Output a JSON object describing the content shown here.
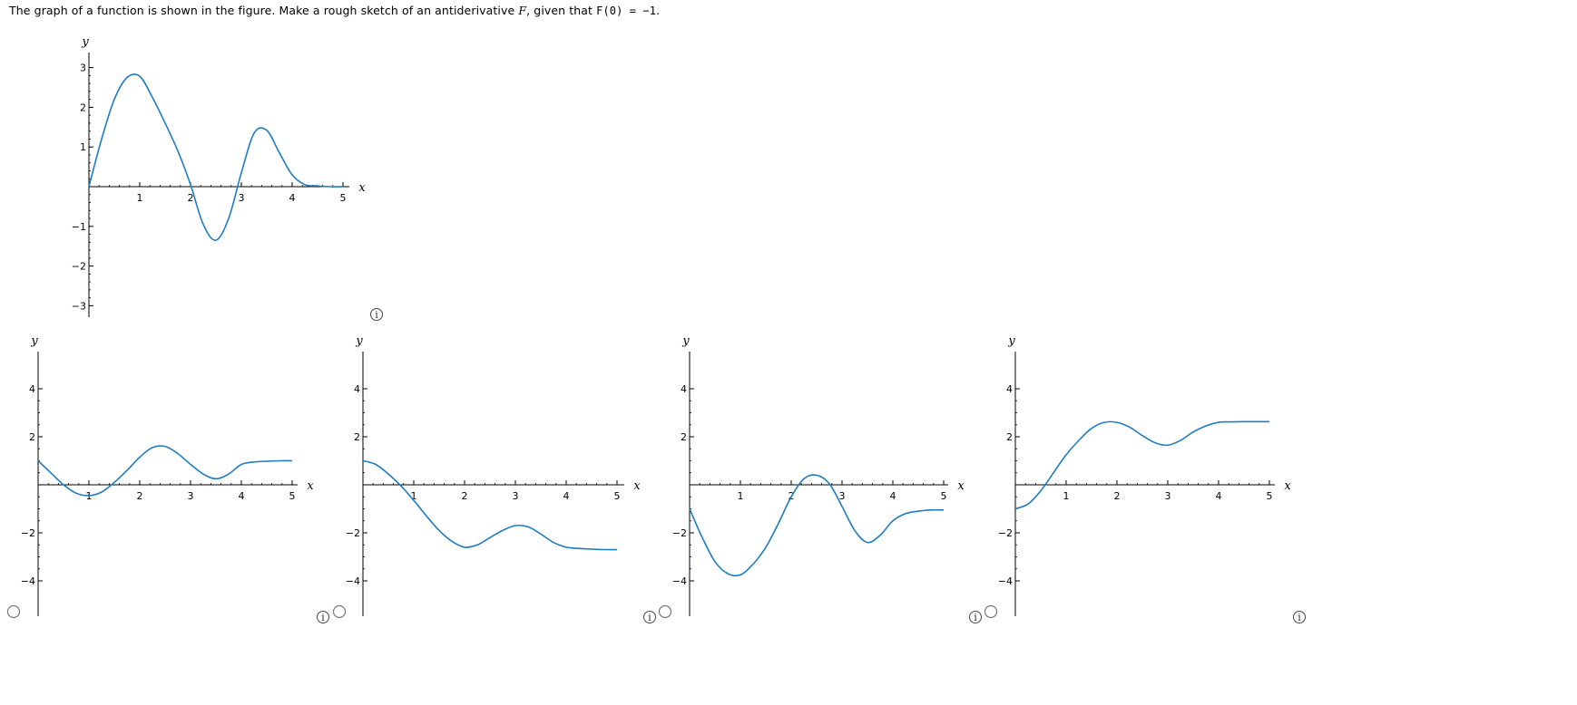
{
  "question": {
    "before_f": "The graph of a function is shown in the figure. Make a rough sketch of an antiderivative ",
    "f_symbol": "F",
    "after_f": ", given that ",
    "condition": "F(0) = −1",
    "period": "."
  },
  "colors": {
    "curve": "#1f7cc0",
    "axis": "#000000"
  },
  "icons": {
    "info": "info-circle-icon",
    "radio": "radio-button"
  },
  "chart_data": [
    {
      "id": "given",
      "type": "line",
      "xlabel": "x",
      "ylabel": "y",
      "xlim": [
        0,
        5
      ],
      "ylim": [
        -3,
        3
      ],
      "xticks": [
        1,
        2,
        3,
        4,
        5
      ],
      "yticks": [
        -3,
        -2,
        -1,
        1,
        2,
        3
      ],
      "series": [
        {
          "x": [
            0,
            0.25,
            0.5,
            0.75,
            1.0,
            1.25,
            1.5,
            1.75,
            2.0,
            2.25,
            2.5,
            2.75,
            3.0,
            3.25,
            3.5,
            3.75,
            4.0,
            4.25,
            4.5,
            4.75,
            5.0
          ],
          "y": [
            0,
            1.2,
            2.2,
            2.75,
            2.78,
            2.25,
            1.6,
            0.9,
            0.05,
            -0.95,
            -1.35,
            -0.8,
            0.35,
            1.35,
            1.42,
            0.85,
            0.3,
            0.05,
            0.02,
            0.0,
            0.0
          ]
        }
      ]
    },
    {
      "id": "choice-a",
      "type": "line",
      "xlabel": "x",
      "ylabel": "y",
      "xlim": [
        0,
        5
      ],
      "ylim": [
        -4,
        4
      ],
      "xticks": [
        1,
        2,
        3,
        4,
        5
      ],
      "yticks": [
        -4,
        -2,
        2,
        4
      ],
      "series": [
        {
          "x": [
            0,
            0.25,
            0.5,
            0.75,
            1.0,
            1.25,
            1.5,
            1.75,
            2.0,
            2.25,
            2.5,
            2.75,
            3.0,
            3.25,
            3.5,
            3.75,
            4.0,
            4.25,
            4.5,
            4.75,
            5.0
          ],
          "y": [
            1.0,
            0.5,
            0.0,
            -0.35,
            -0.45,
            -0.3,
            0.1,
            0.6,
            1.15,
            1.55,
            1.6,
            1.3,
            0.85,
            0.45,
            0.25,
            0.45,
            0.85,
            0.95,
            0.98,
            1.0,
            1.0
          ]
        }
      ]
    },
    {
      "id": "choice-b",
      "type": "line",
      "xlabel": "x",
      "ylabel": "y",
      "xlim": [
        0,
        5
      ],
      "ylim": [
        -4,
        4
      ],
      "xticks": [
        1,
        2,
        3,
        4,
        5
      ],
      "yticks": [
        -4,
        -2,
        2,
        4
      ],
      "series": [
        {
          "x": [
            0,
            0.25,
            0.5,
            0.75,
            1.0,
            1.25,
            1.5,
            1.75,
            2.0,
            2.25,
            2.5,
            2.75,
            3.0,
            3.25,
            3.5,
            3.75,
            4.0,
            4.25,
            4.5,
            4.75,
            5.0
          ],
          "y": [
            1.0,
            0.85,
            0.45,
            -0.05,
            -0.65,
            -1.3,
            -1.9,
            -2.35,
            -2.6,
            -2.5,
            -2.2,
            -1.9,
            -1.7,
            -1.75,
            -2.05,
            -2.4,
            -2.6,
            -2.65,
            -2.68,
            -2.7,
            -2.7
          ]
        }
      ]
    },
    {
      "id": "choice-c",
      "type": "line",
      "xlabel": "x",
      "ylabel": "y",
      "xlim": [
        0,
        5
      ],
      "ylim": [
        -4,
        4
      ],
      "xticks": [
        1,
        2,
        3,
        4,
        5
      ],
      "yticks": [
        -4,
        -2,
        2,
        4
      ],
      "series": [
        {
          "x": [
            0,
            0.25,
            0.5,
            0.75,
            1.0,
            1.25,
            1.5,
            1.75,
            2.0,
            2.25,
            2.5,
            2.75,
            3.0,
            3.25,
            3.5,
            3.75,
            4.0,
            4.25,
            4.5,
            4.75,
            5.0
          ],
          "y": [
            -1.0,
            -2.2,
            -3.2,
            -3.7,
            -3.75,
            -3.3,
            -2.6,
            -1.6,
            -0.5,
            0.25,
            0.4,
            0.05,
            -0.9,
            -1.9,
            -2.4,
            -2.1,
            -1.5,
            -1.2,
            -1.1,
            -1.05,
            -1.05
          ]
        }
      ]
    },
    {
      "id": "choice-d",
      "type": "line",
      "xlabel": "x",
      "ylabel": "y",
      "xlim": [
        0,
        5
      ],
      "ylim": [
        -4,
        4
      ],
      "xticks": [
        1,
        2,
        3,
        4,
        5
      ],
      "yticks": [
        -4,
        -2,
        2,
        4
      ],
      "series": [
        {
          "x": [
            0,
            0.25,
            0.5,
            0.75,
            1.0,
            1.25,
            1.5,
            1.75,
            2.0,
            2.25,
            2.5,
            2.75,
            3.0,
            3.25,
            3.5,
            3.75,
            4.0,
            4.25,
            4.5,
            4.75,
            5.0
          ],
          "y": [
            -1.0,
            -0.8,
            -0.25,
            0.5,
            1.25,
            1.85,
            2.35,
            2.6,
            2.6,
            2.4,
            2.05,
            1.75,
            1.65,
            1.85,
            2.2,
            2.45,
            2.6,
            2.62,
            2.63,
            2.63,
            2.63
          ]
        }
      ]
    }
  ]
}
